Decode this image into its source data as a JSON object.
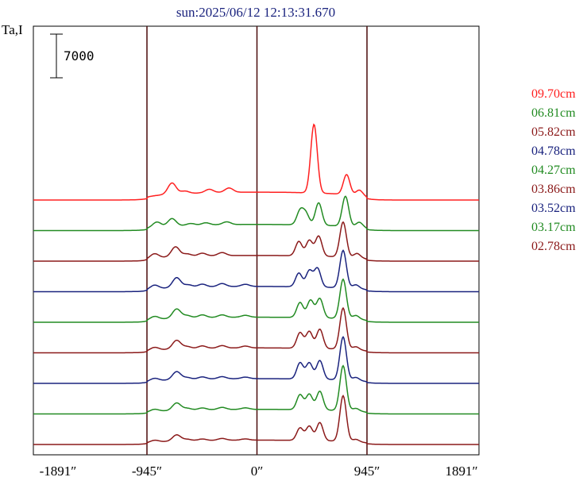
{
  "title": "sun:2025/06/12 12:13:31.670",
  "ylabel": "Ta,I",
  "scale_bar_label": "7000",
  "chart_data": {
    "type": "line",
    "title": "sun:2025/06/12 12:13:31.670",
    "ylabel": "Ta,I",
    "xlabel": "",
    "x_ticks": [
      {
        "value": -1891,
        "label": "-1891″"
      },
      {
        "value": -945,
        "label": "-945″"
      },
      {
        "value": 0,
        "label": "0″"
      },
      {
        "value": 945,
        "label": "945″"
      },
      {
        "value": 1891,
        "label": "1891″"
      }
    ],
    "xlim": [
      -1891,
      1891
    ],
    "vertical_lines": [
      -945,
      0,
      945
    ],
    "scale_bar_value": 7000,
    "series": [
      {
        "name": "09.70cm",
        "color": "#ff2020",
        "baseline": 0,
        "limb": 900,
        "disk_peaks": [
          [
            -730,
            1800
          ],
          [
            -620,
            400
          ],
          [
            -410,
            550
          ],
          [
            -240,
            700
          ]
        ],
        "active_peaks": [
          [
            490,
            11000
          ],
          [
            770,
            3200
          ],
          [
            880,
            900
          ]
        ]
      },
      {
        "name": "06.81cm",
        "color": "#228b22",
        "baseline": 0,
        "limb": 700,
        "disk_peaks": [
          [
            -860,
            800
          ],
          [
            -730,
            1200
          ],
          [
            -570,
            300
          ],
          [
            -440,
            350
          ],
          [
            -260,
            450
          ]
        ],
        "active_peaks": [
          [
            370,
            2200
          ],
          [
            420,
            1800
          ],
          [
            530,
            3600
          ],
          [
            760,
            4800
          ],
          [
            880,
            800
          ]
        ]
      },
      {
        "name": "05.82cm",
        "color": "#8b1a1a",
        "baseline": 0,
        "limb": 650,
        "disk_peaks": [
          [
            -880,
            700
          ],
          [
            -700,
            1600
          ],
          [
            -600,
            400
          ],
          [
            -470,
            450
          ],
          [
            -300,
            500
          ]
        ],
        "active_peaks": [
          [
            360,
            2300
          ],
          [
            450,
            2500
          ],
          [
            530,
            3200
          ],
          [
            740,
            5600
          ],
          [
            860,
            700
          ]
        ]
      },
      {
        "name": "04.78cm",
        "color": "#1a237e",
        "baseline": 0,
        "limb": 600,
        "disk_peaks": [
          [
            -880,
            600
          ],
          [
            -690,
            1600
          ],
          [
            -590,
            400
          ],
          [
            -470,
            450
          ],
          [
            -300,
            500
          ],
          [
            -100,
            350
          ]
        ],
        "active_peaks": [
          [
            360,
            2200
          ],
          [
            450,
            2600
          ],
          [
            520,
            3000
          ],
          [
            740,
            6000
          ],
          [
            850,
            600
          ]
        ]
      },
      {
        "name": "04.27cm",
        "color": "#228b22",
        "baseline": 0,
        "limb": 580,
        "disk_peaks": [
          [
            -880,
            500
          ],
          [
            -690,
            1500
          ],
          [
            -600,
            400
          ],
          [
            -470,
            450
          ],
          [
            -300,
            400
          ],
          [
            -100,
            300
          ]
        ],
        "active_peaks": [
          [
            370,
            2400
          ],
          [
            460,
            2800
          ],
          [
            540,
            3100
          ],
          [
            740,
            6300
          ],
          [
            850,
            600
          ]
        ]
      },
      {
        "name": "03.86cm",
        "color": "#8b1a1a",
        "baseline": 0,
        "limb": 560,
        "disk_peaks": [
          [
            -880,
            450
          ],
          [
            -690,
            1400
          ],
          [
            -600,
            350
          ],
          [
            -470,
            400
          ],
          [
            -300,
            400
          ],
          [
            -100,
            300
          ]
        ],
        "active_peaks": [
          [
            370,
            2500
          ],
          [
            450,
            2700
          ],
          [
            540,
            3100
          ],
          [
            740,
            6600
          ],
          [
            850,
            500
          ]
        ]
      },
      {
        "name": "03.52cm",
        "color": "#1a237e",
        "baseline": 0,
        "limb": 540,
        "disk_peaks": [
          [
            -880,
            400
          ],
          [
            -690,
            1300
          ],
          [
            -600,
            300
          ],
          [
            -470,
            350
          ],
          [
            -300,
            350
          ],
          [
            -100,
            250
          ]
        ],
        "active_peaks": [
          [
            370,
            2600
          ],
          [
            450,
            2600
          ],
          [
            540,
            3000
          ],
          [
            740,
            6900
          ],
          [
            850,
            500
          ]
        ]
      },
      {
        "name": "03.17cm",
        "color": "#228b22",
        "baseline": 0,
        "limb": 520,
        "disk_peaks": [
          [
            -880,
            350
          ],
          [
            -690,
            1200
          ],
          [
            -600,
            300
          ],
          [
            -470,
            300
          ],
          [
            -300,
            350
          ],
          [
            -100,
            250
          ]
        ],
        "active_peaks": [
          [
            370,
            2400
          ],
          [
            450,
            2500
          ],
          [
            540,
            3000
          ],
          [
            740,
            7200
          ],
          [
            850,
            450
          ]
        ]
      },
      {
        "name": "02.78cm",
        "color": "#8b1a1a",
        "baseline": 0,
        "limb": 500,
        "disk_peaks": [
          [
            -880,
            300
          ],
          [
            -690,
            1000
          ],
          [
            -600,
            250
          ],
          [
            -470,
            250
          ],
          [
            -300,
            300
          ],
          [
            -100,
            200
          ]
        ],
        "active_peaks": [
          [
            370,
            2000
          ],
          [
            450,
            2300
          ],
          [
            540,
            2900
          ],
          [
            740,
            7300
          ],
          [
            850,
            400
          ]
        ]
      }
    ],
    "grid": false,
    "legend_position": "right"
  }
}
